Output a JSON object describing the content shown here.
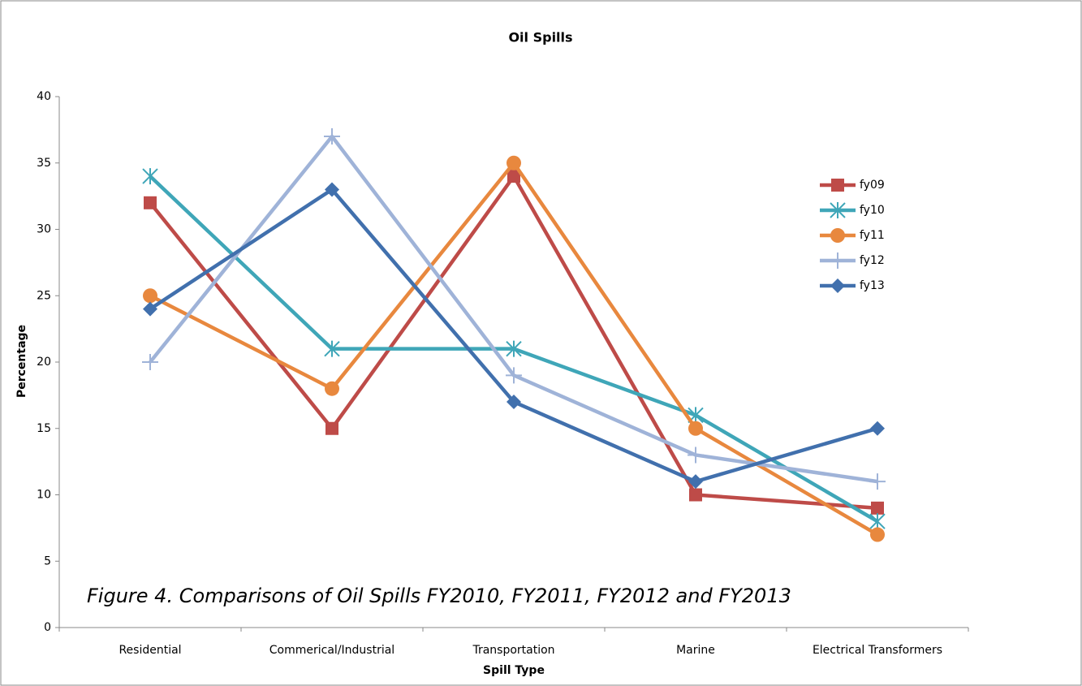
{
  "chart_data": {
    "type": "line",
    "title": "Oil Spills",
    "x_label": "Spill Type",
    "y_label": "Percentage",
    "annotation": "Figure 4. Comparisons of Oil Spills FY2010, FY2011, FY2012 and FY2013",
    "categories": [
      "Residential",
      "Commerical/Industrial",
      "Transportation",
      "Marine",
      "Electrical Transformers"
    ],
    "series": [
      {
        "name": "fy09",
        "color": "#be4b48",
        "marker": "square",
        "values": [
          32,
          15,
          34,
          10,
          9
        ]
      },
      {
        "name": "fy10",
        "color": "#3fa6b8",
        "marker": "star",
        "values": [
          34,
          21,
          21,
          16,
          8
        ]
      },
      {
        "name": "fy11",
        "color": "#e8883e",
        "marker": "circle",
        "values": [
          25,
          18,
          35,
          15,
          7
        ]
      },
      {
        "name": "fy12",
        "color": "#9fb3d8",
        "marker": "plus",
        "values": [
          20,
          37,
          19,
          13,
          11
        ]
      },
      {
        "name": "fy13",
        "color": "#4170ad",
        "marker": "diamond",
        "values": [
          24,
          33,
          17,
          11,
          15
        ]
      }
    ],
    "ylim": [
      0,
      40
    ],
    "yticks": [
      0,
      5,
      10,
      15,
      20,
      25,
      30,
      35,
      40
    ],
    "grid": false,
    "legend": "right"
  }
}
